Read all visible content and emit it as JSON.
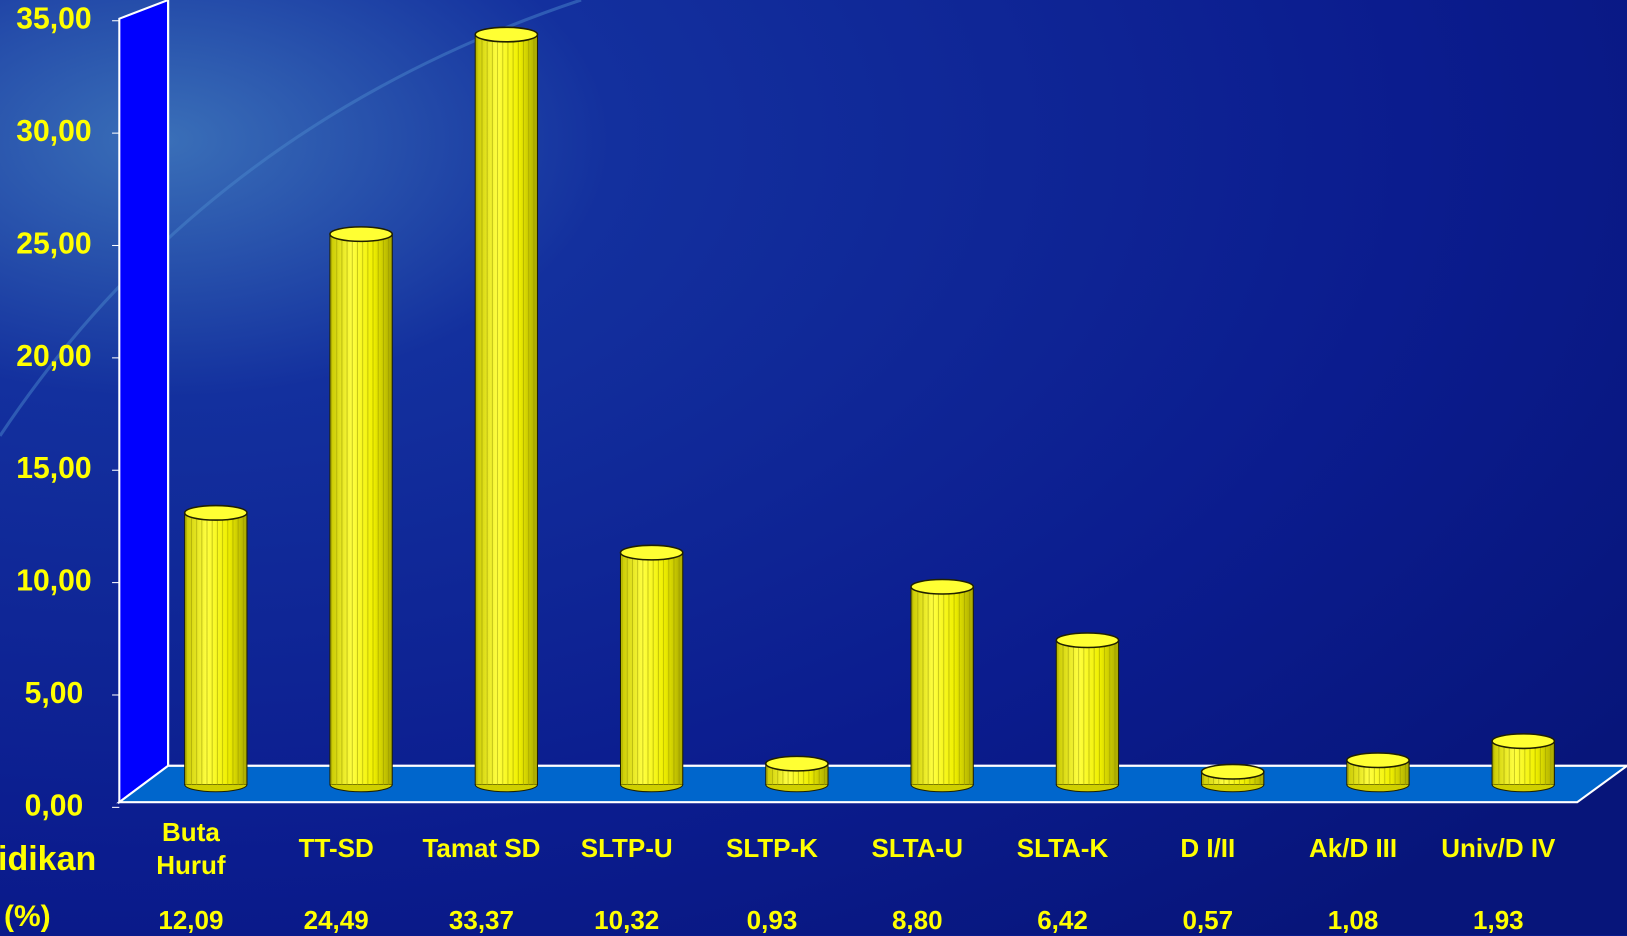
{
  "chart_data": {
    "type": "bar",
    "categories": [
      "Buta Huruf",
      "TT-SD",
      "Tamat SD",
      "SLTP-U",
      "SLTP-K",
      "SLTA-U",
      "SLTA-K",
      "D I/II",
      "Ak/D III",
      "Univ/D IV"
    ],
    "values": [
      12.09,
      24.49,
      33.37,
      10.32,
      0.93,
      8.8,
      6.42,
      0.57,
      1.08,
      1.93
    ],
    "value_labels": [
      "12,09",
      "24,49",
      "33,37",
      "10,32",
      "0,93",
      "8,80",
      "6,42",
      "0,57",
      "1,08",
      "1,93"
    ],
    "row_labels": [
      "idikan",
      "(%)"
    ],
    "color": "#ffff00",
    "ylim": [
      0,
      35
    ],
    "yticks": [
      {
        "value": 0,
        "label": "0,00"
      },
      {
        "value": 5,
        "label": "5,00"
      },
      {
        "value": 10,
        "label": "10,00"
      },
      {
        "value": 15,
        "label": "15,00"
      },
      {
        "value": 20,
        "label": "20,00"
      },
      {
        "value": 25,
        "label": "25,00"
      },
      {
        "value": 30,
        "label": "30,00"
      },
      {
        "value": 35,
        "label": "35,00"
      }
    ]
  }
}
